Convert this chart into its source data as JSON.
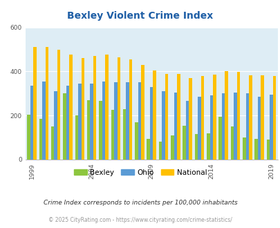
{
  "title": "Bexley Violent Crime Index",
  "years": [
    1999,
    2000,
    2001,
    2002,
    2003,
    2004,
    2005,
    2006,
    2007,
    2008,
    2009,
    2010,
    2011,
    2012,
    2013,
    2014,
    2015,
    2016,
    2017,
    2018,
    2019
  ],
  "bexley": [
    205,
    185,
    150,
    300,
    200,
    270,
    265,
    225,
    230,
    170,
    95,
    80,
    110,
    155,
    115,
    120,
    195,
    150,
    100,
    95,
    90
  ],
  "ohio": [
    335,
    355,
    310,
    335,
    345,
    345,
    355,
    350,
    350,
    350,
    330,
    310,
    305,
    265,
    285,
    290,
    300,
    305,
    300,
    285,
    295
  ],
  "national": [
    510,
    510,
    500,
    475,
    460,
    470,
    475,
    465,
    455,
    430,
    405,
    390,
    390,
    370,
    378,
    385,
    400,
    398,
    383,
    383,
    378
  ],
  "bexley_color": "#8dc63f",
  "ohio_color": "#5b9bd5",
  "national_color": "#ffc000",
  "bg_color": "#deedf5",
  "ylim": [
    0,
    600
  ],
  "yticks": [
    0,
    200,
    400,
    600
  ],
  "xlabel_years": [
    1999,
    2004,
    2009,
    2014,
    2019
  ],
  "subtitle": "Crime Index corresponds to incidents per 100,000 inhabitants",
  "footer": "© 2025 CityRating.com - https://www.cityrating.com/crime-statistics/",
  "title_color": "#1f5fa6",
  "subtitle_color": "#333333",
  "footer_color": "#999999"
}
